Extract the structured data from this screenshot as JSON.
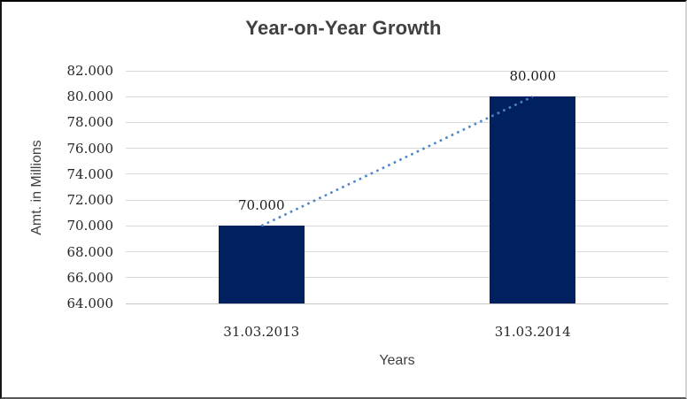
{
  "chart_data": {
    "type": "bar",
    "title": "Year-on-Year Growth",
    "xlabel": "Years",
    "ylabel": "Amt. in Millions",
    "categories": [
      "31.03.2013",
      "31.03.2014"
    ],
    "values": [
      70000,
      80000
    ],
    "data_labels": [
      "70.000",
      "80.000"
    ],
    "ylim": [
      64000,
      82000
    ],
    "ytick_step": 2000,
    "ytick_labels_top_to_bottom": [
      "82.000",
      "80.000",
      "78.000",
      "76.000",
      "74.000",
      "72.000",
      "70.000",
      "68.000",
      "66.000",
      "64.000"
    ],
    "grid": true,
    "legend": "none",
    "trendline": {
      "type": "linear",
      "style": "dotted",
      "color": "#4a86c8"
    },
    "colors": {
      "bar": "#002060",
      "gridline": "#d9d9d9",
      "title_text": "#404040",
      "tick_text": "#262626",
      "axis_title_text": "#404040",
      "background": "#ffffff"
    }
  }
}
